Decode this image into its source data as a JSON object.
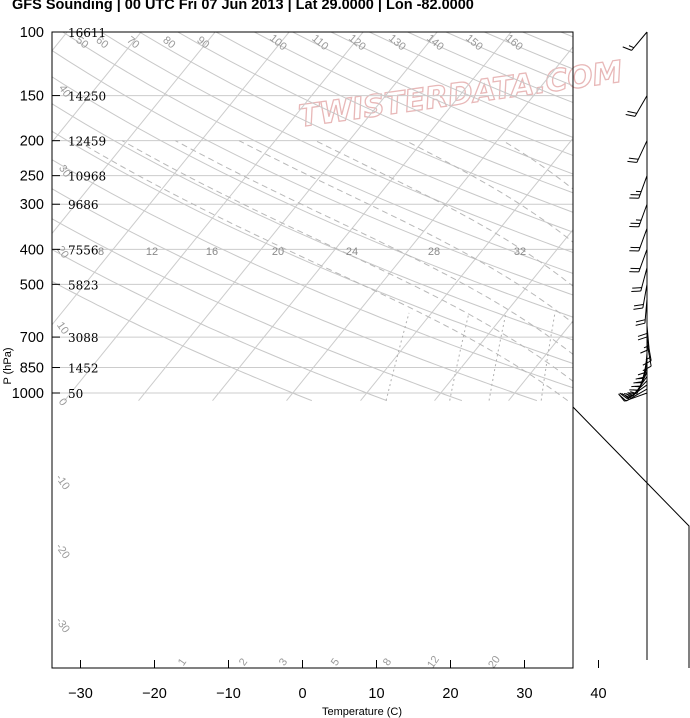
{
  "title": "GFS Sounding | 00 UTC Fri 07 Jun 2013 | Lat 29.0000 | Lon -82.0000",
  "watermark": "TWISTERDATA.COM",
  "chart_data": {
    "type": "skew-t",
    "xlabel": "Temperature (C)",
    "ylabel": "P (hPa)",
    "x_ticks": [
      -30,
      -20,
      -10,
      0,
      10,
      20,
      30,
      40
    ],
    "p_ticks": [
      100,
      150,
      200,
      250,
      300,
      400,
      500,
      700,
      850,
      1000
    ],
    "heights": [
      {
        "p": 100,
        "label": "16611"
      },
      {
        "p": 150,
        "label": "14250"
      },
      {
        "p": 200,
        "label": "12459"
      },
      {
        "p": 250,
        "label": "10968"
      },
      {
        "p": 300,
        "label": "9686"
      },
      {
        "p": 400,
        "label": "7556"
      },
      {
        "p": 500,
        "label": "5823"
      },
      {
        "p": 700,
        "label": "3088"
      },
      {
        "p": 850,
        "label": "1452"
      },
      {
        "p": 1000,
        "label": "50"
      }
    ],
    "dry_adiabat_labels": [
      "50",
      "60",
      "70",
      "80",
      "90",
      "100",
      "110",
      "120",
      "130",
      "140",
      "150",
      "160"
    ],
    "moist_adiabat_labels": [
      "8",
      "12",
      "16",
      "20",
      "24",
      "28",
      "32"
    ],
    "mixing_ratio_labels": [
      "1",
      "2",
      "3",
      "5",
      "8",
      "12",
      "20"
    ],
    "isotherm_labels": [
      "40",
      "30",
      "20",
      "10",
      "0",
      "-10",
      "-20",
      "-30",
      "-40",
      "-50",
      "-60"
    ],
    "temperature": {
      "color": "#d00000",
      "points": [
        [
          1000,
          24.2
        ],
        [
          975,
          23.6
        ],
        [
          950,
          22.9
        ],
        [
          900,
          22.3
        ],
        [
          850,
          22.0
        ],
        [
          800,
          22.3
        ],
        [
          750,
          22.6
        ],
        [
          700,
          22.5
        ],
        [
          650,
          21.8
        ],
        [
          600,
          21.2
        ],
        [
          550,
          20.4
        ],
        [
          500,
          19.4
        ],
        [
          450,
          18.0
        ],
        [
          400,
          16.7
        ],
        [
          350,
          15.2
        ],
        [
          300,
          11.8
        ],
        [
          250,
          7.1
        ],
        [
          200,
          0.4
        ],
        [
          150,
          -6.4
        ],
        [
          125,
          -3.0
        ],
        [
          100,
          2.5
        ]
      ]
    },
    "dewpoint": {
      "color": "#008000",
      "points": [
        [
          1000,
          23.2
        ],
        [
          975,
          22.7
        ],
        [
          950,
          22.3
        ],
        [
          900,
          22.0
        ],
        [
          850,
          21.8
        ],
        [
          800,
          22.2
        ],
        [
          750,
          22.5
        ],
        [
          700,
          22.4
        ],
        [
          650,
          21.6
        ],
        [
          600,
          21.0
        ],
        [
          550,
          20.0
        ],
        [
          500,
          18.9
        ],
        [
          450,
          17.3
        ],
        [
          400,
          15.9
        ],
        [
          350,
          14.9
        ],
        [
          300,
          11.4
        ],
        [
          250,
          6.9
        ],
        [
          200,
          0.2
        ],
        [
          150,
          -6.6
        ],
        [
          125,
          -4.2
        ],
        [
          100,
          -0.3
        ]
      ]
    },
    "wetbulb": {
      "color": "#0000cc",
      "points": [
        [
          1000,
          23.6
        ],
        [
          975,
          23.1
        ],
        [
          950,
          22.5
        ],
        [
          900,
          22.1
        ],
        [
          850,
          21.9
        ],
        [
          800,
          22.2
        ],
        [
          750,
          22.5
        ],
        [
          700,
          22.4
        ],
        [
          650,
          21.7
        ],
        [
          600,
          21.1
        ],
        [
          550,
          20.2
        ],
        [
          500,
          19.1
        ],
        [
          450,
          17.6
        ],
        [
          400,
          16.2
        ],
        [
          350,
          15.0
        ],
        [
          300,
          11.6
        ],
        [
          250,
          7.0
        ],
        [
          200,
          0.3
        ],
        [
          150,
          -6.5
        ],
        [
          125,
          -3.3
        ],
        [
          100,
          2.3
        ]
      ]
    },
    "virtual_temperature": {
      "color": "#c000c0",
      "points": [
        [
          1000,
          24.6
        ],
        [
          950,
          23.3
        ],
        [
          900,
          22.6
        ],
        [
          850,
          22.3
        ],
        [
          700,
          22.7
        ],
        [
          500,
          19.6
        ],
        [
          400,
          16.8
        ],
        [
          300,
          11.9
        ],
        [
          200,
          0.4
        ],
        [
          150,
          -6.4
        ],
        [
          100,
          2.6
        ]
      ]
    },
    "parcel": {
      "color": "#8b0000",
      "style": "dotted",
      "points": [
        [
          1000,
          26.8
        ],
        [
          950,
          25.6
        ],
        [
          900,
          24.6
        ],
        [
          850,
          24.0
        ],
        [
          800,
          24.2
        ],
        [
          750,
          24.4
        ],
        [
          700,
          24.5
        ],
        [
          650,
          24.0
        ],
        [
          600,
          23.4
        ],
        [
          550,
          22.6
        ],
        [
          500,
          21.7
        ],
        [
          450,
          20.6
        ],
        [
          400,
          19.3
        ],
        [
          350,
          16.5
        ],
        [
          300,
          12.3
        ],
        [
          250,
          7.3
        ]
      ]
    },
    "wind_barbs": [
      {
        "p": 1000,
        "dir": 250,
        "kt": 10
      },
      {
        "p": 975,
        "dir": 240,
        "kt": 15
      },
      {
        "p": 950,
        "dir": 235,
        "kt": 15
      },
      {
        "p": 925,
        "dir": 225,
        "kt": 15
      },
      {
        "p": 900,
        "dir": 215,
        "kt": 15
      },
      {
        "p": 875,
        "dir": 205,
        "kt": 15
      },
      {
        "p": 850,
        "dir": 200,
        "kt": 15
      },
      {
        "p": 825,
        "dir": 195,
        "kt": 15
      },
      {
        "p": 800,
        "dir": 190,
        "kt": 15
      },
      {
        "p": 775,
        "dir": 185,
        "kt": 10
      },
      {
        "p": 750,
        "dir": 180,
        "kt": 10
      },
      {
        "p": 725,
        "dir": 170,
        "kt": 10
      },
      {
        "p": 700,
        "dir": 170,
        "kt": 15
      },
      {
        "p": 650,
        "dir": 175,
        "kt": 15
      },
      {
        "p": 600,
        "dir": 180,
        "kt": 20
      },
      {
        "p": 550,
        "dir": 185,
        "kt": 20
      },
      {
        "p": 500,
        "dir": 190,
        "kt": 20
      },
      {
        "p": 450,
        "dir": 195,
        "kt": 20
      },
      {
        "p": 400,
        "dir": 200,
        "kt": 20
      },
      {
        "p": 350,
        "dir": 200,
        "kt": 20
      },
      {
        "p": 300,
        "dir": 200,
        "kt": 25
      },
      {
        "p": 250,
        "dir": 200,
        "kt": 25
      },
      {
        "p": 200,
        "dir": 205,
        "kt": 20
      },
      {
        "p": 150,
        "dir": 210,
        "kt": 20
      },
      {
        "p": 100,
        "dir": 220,
        "kt": 15
      }
    ]
  }
}
